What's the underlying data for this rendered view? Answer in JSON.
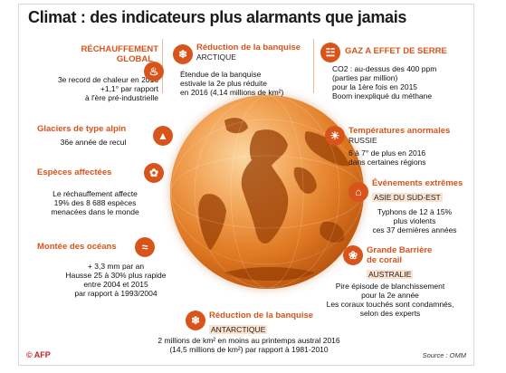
{
  "title": "Climat : des indicateurs plus alarmants que jamais",
  "indicators": {
    "rechauffement": {
      "heading_1": "RÉCHAUFFEMENT",
      "heading_2": "GLOBAL",
      "line_1": "3e record de chaleur en 2016",
      "line_2": "+1,1° par rapport",
      "line_3": "à l'ère pré-industrielle"
    },
    "banquise_arctique": {
      "heading": "Réduction de la banquise",
      "region": "ARCTIQUE",
      "line_1": "Étendue de la banquise",
      "line_2": "estivale la 2e plus réduite",
      "line_3": "en 2016 (4,14 millions de km²)"
    },
    "gaz": {
      "heading": "GAZ A EFFET DE SERRE",
      "line_1": "CO2 : au-dessus des 400 ppm",
      "line_2": "(parties par million)",
      "line_3": "pour la 1ère fois en 2015",
      "line_4": "Boom inexpliqué du méthane"
    },
    "glaciers": {
      "heading": "Glaciers de type alpin",
      "line_1": "36e année de recul"
    },
    "temperatures": {
      "heading": "Températures anormales",
      "region": "RUSSIE",
      "line_1": "6 à 7° de plus en 2016",
      "line_2": "dans certaines régions"
    },
    "especes": {
      "heading": "Espèces affectées",
      "line_1": "Le réchauffement affecte",
      "line_2": "19% des 8 688 espèces",
      "line_3": "menacées dans le monde"
    },
    "evenements": {
      "heading": "Événements extrêmes",
      "region": "ASIE DU SUD-EST",
      "line_1": "Typhons de 12 à 15%",
      "line_2": "plus violents",
      "line_3": "ces 37 dernières années"
    },
    "oceans": {
      "heading": "Montée des océans",
      "line_1": "+ 3,3 mm par an",
      "line_2": "Hausse 25 à 30% plus rapide",
      "line_3": "entre 2004 et 2015",
      "line_4": "par rapport à 1993/2004"
    },
    "barriere": {
      "heading_1": "Grande Barrière",
      "heading_2": "de corail",
      "region": "AUSTRALIE",
      "line_1": "Pire épisode de blanchissement",
      "line_2": "pour la 2e année",
      "line_3": "Les coraux touchés sont condamnés,",
      "line_4": "selon des experts"
    },
    "banquise_antarctique": {
      "heading": "Réduction de la banquise",
      "region": "ANTARCTIQUE",
      "line_1": "2 millions de km² en moins au printemps austral 2016",
      "line_2": "(14,5 millions de km²) par rapport à 1981-2010"
    }
  },
  "footer": {
    "logo": "© AFP",
    "source": "Source : OMM"
  },
  "colors": {
    "accent": "#d8541a",
    "globe_light": "#fbd7a2",
    "globe_dark": "#b44f0c"
  },
  "icons": [
    "thermometer-icon",
    "ice-icon",
    "factory-icon",
    "mountain-icon",
    "sun-icon",
    "bird-icon",
    "storm-icon",
    "wave-icon",
    "coral-icon",
    "ice-icon"
  ]
}
